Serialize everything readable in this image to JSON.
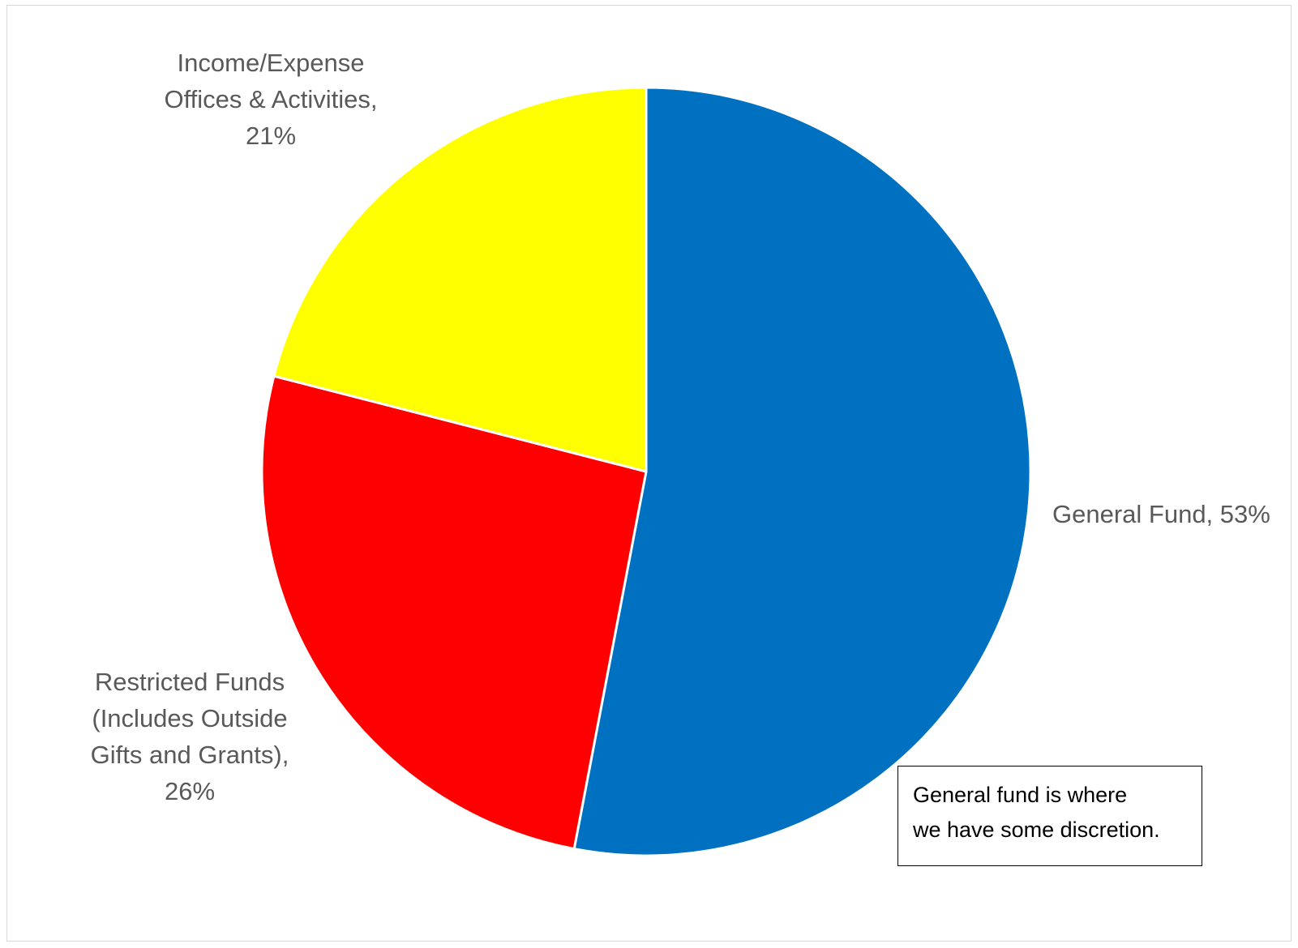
{
  "chart_data": {
    "type": "pie",
    "start": "12 o'clock, clockwise",
    "slices": [
      {
        "label": "General Fund",
        "value": 53,
        "color": "#0070C0",
        "label_lines": [
          "General  Fund, 53%"
        ]
      },
      {
        "label": "Restricted Funds (Includes Outside Gifts and Grants)",
        "value": 26,
        "color": "#FF0000",
        "label_lines": [
          "Restricted  Funds",
          "(Includes  Outside",
          "Gifts and  Grants),",
          "26%"
        ]
      },
      {
        "label": "Income/Expense Offices & Activities",
        "value": 21,
        "color": "#FFFF00",
        "label_lines": [
          "Income/Expense",
          "Offices  &  Activities,",
          "21%"
        ]
      }
    ],
    "annotation": {
      "lines": [
        "General fund is where",
        "we have some discretion."
      ]
    }
  }
}
